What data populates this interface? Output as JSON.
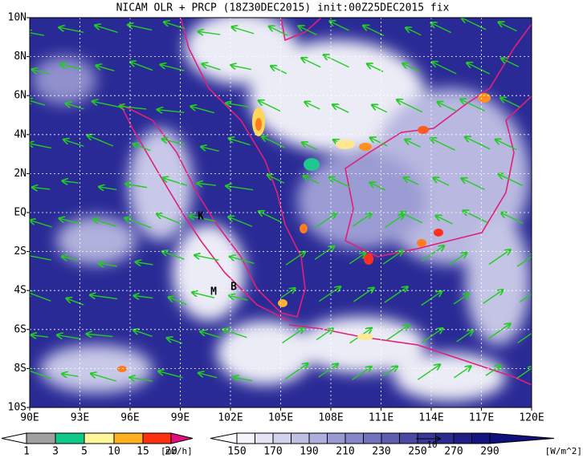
{
  "title": "NICAM OLR + PRCP (18Z30DEC2015) init:00Z25DEC2015 fix",
  "x_labels": [
    "90E",
    "93E",
    "96E",
    "99E",
    "102E",
    "105E",
    "108E",
    "111E",
    "114E",
    "117E",
    "120E"
  ],
  "y_labels": [
    "10N",
    "8N",
    "6N",
    "4N",
    "2N",
    "EQ",
    "2S",
    "4S",
    "6S",
    "8S",
    "10S"
  ],
  "map_labels": [
    "K",
    "M",
    "B"
  ],
  "precip_bar": {
    "labels": [
      "1",
      "3",
      "5",
      "10",
      "15",
      "20"
    ],
    "units": "[mm/h]"
  },
  "olr_bar": {
    "labels": [
      "150",
      "170",
      "190",
      "210",
      "230",
      "250",
      "270",
      "290"
    ],
    "units": "[W/m^2]",
    "vector_label": "10"
  }
}
